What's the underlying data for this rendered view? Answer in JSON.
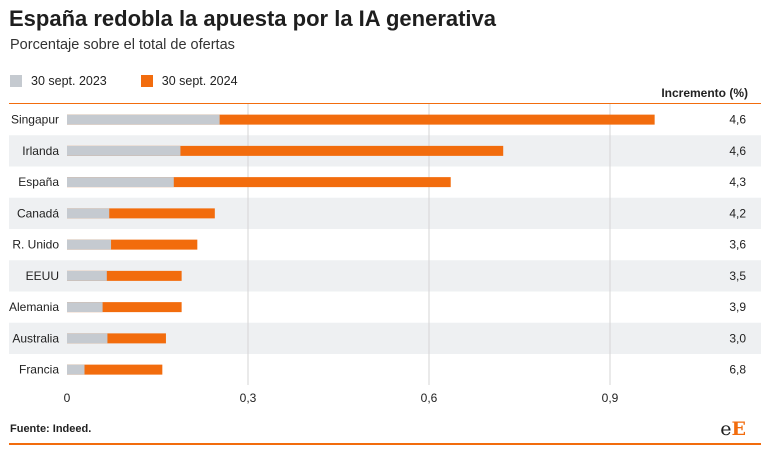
{
  "title": "España redobla la apuesta por la IA generativa",
  "subtitle": "Porcentaje sobre el total de ofertas",
  "source": "Fuente: Indeed.",
  "logo": {
    "part1": "e",
    "part2": "E"
  },
  "colors": {
    "series_2023": "#c5cad0",
    "series_2024": "#f26c0d",
    "band": "#eef0f2",
    "grid": "#d5d5d5",
    "header_line": "#f26c0d"
  },
  "chart_data": {
    "type": "bar",
    "orientation": "horizontal",
    "stacked": false,
    "overlapping": true,
    "title": "España redobla la apuesta por la IA generativa",
    "subtitle": "Porcentaje sobre el total de ofertas",
    "categories": [
      "Singapur",
      "Irlanda",
      "España",
      "Canadá",
      "R. Unido",
      "EEUU",
      "Alemania",
      "Australia",
      "Francia"
    ],
    "series": [
      {
        "name": "30 sept. 2023",
        "color": "#c5cad0",
        "values": [
          0.253,
          0.188,
          0.177,
          0.07,
          0.073,
          0.066,
          0.059,
          0.067,
          0.029
        ]
      },
      {
        "name": "30 sept. 2024",
        "color": "#f26c0d",
        "values": [
          0.974,
          0.723,
          0.636,
          0.245,
          0.216,
          0.19,
          0.19,
          0.164,
          0.158
        ]
      }
    ],
    "increment_header": "Incremento (%)",
    "increments": [
      "4,6",
      "4,6",
      "4,3",
      "4,2",
      "3,6",
      "3,5",
      "3,9",
      "3,0",
      "6,8"
    ],
    "xlim": [
      0,
      1.12
    ],
    "xticks": [
      0,
      0.3,
      0.6,
      0.9
    ],
    "xtick_labels": [
      "0",
      "0,3",
      "0,6",
      "0,9"
    ],
    "grid": true,
    "legend_position": "top-left"
  }
}
